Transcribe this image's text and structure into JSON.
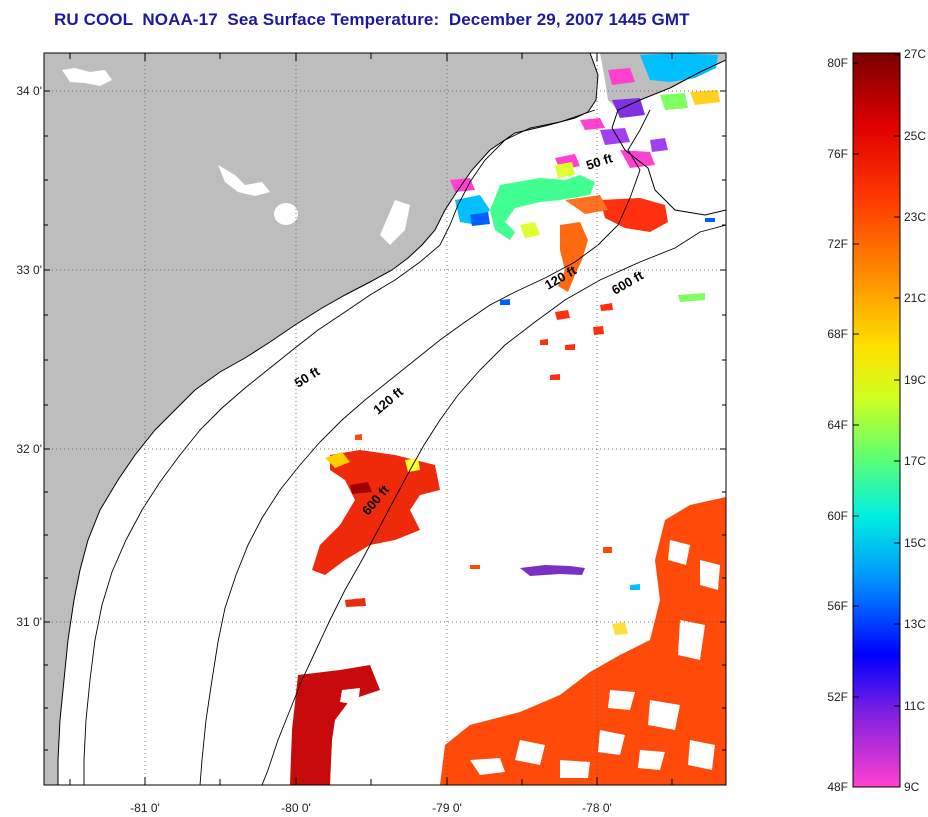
{
  "title": "RU COOL  NOAA-17  Sea Surface Temperature:  December 29, 2007 1445 GMT",
  "map": {
    "lat_ticks": [
      "34 0'",
      "33 0'",
      "32 0'",
      "31 0'"
    ],
    "lon_ticks": [
      "-81 0'",
      "-80 0'",
      "-79 0'",
      "-78 0'"
    ],
    "contour_labels": [
      "50 ft",
      "120 ft",
      "600 ft",
      "50 ft",
      "120 ft",
      "600 ft"
    ],
    "colors": {
      "land": "#bdbdbd",
      "ocean": "#ffffff",
      "contour": "#000000"
    }
  },
  "colorbar": {
    "f_labels": [
      "80F",
      "76F",
      "72F",
      "68F",
      "64F",
      "60F",
      "56F",
      "52F",
      "48F"
    ],
    "c_labels": [
      "27C",
      "25C",
      "23C",
      "21C",
      "19C",
      "17C",
      "15C",
      "13C",
      "11C",
      "9C"
    ],
    "stops": [
      "#7a0000",
      "#e00000",
      "#ff5a00",
      "#ffa000",
      "#ffff00",
      "#a0ff40",
      "#40ff90",
      "#00ffff",
      "#0080ff",
      "#0000ff",
      "#8020e0",
      "#ff40d0"
    ]
  }
}
